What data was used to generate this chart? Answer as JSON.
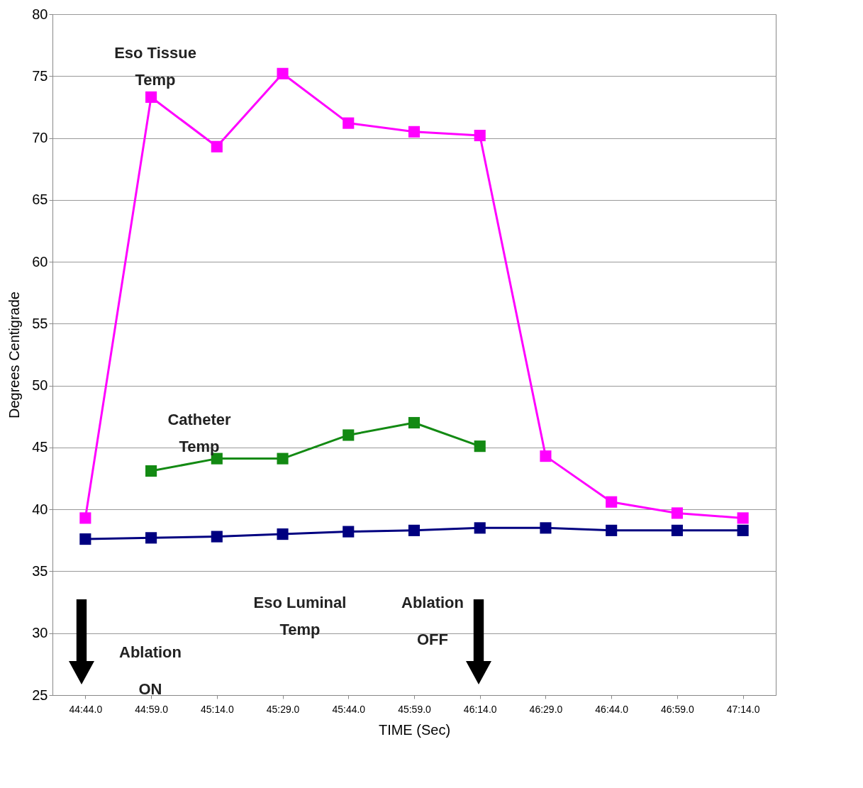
{
  "chart_data": {
    "type": "line",
    "xlabel": "TIME (Sec)",
    "ylabel": "Degrees Centigrade",
    "categories": [
      "44:44.0",
      "44:59.0",
      "45:14.0",
      "45:29.0",
      "45:44.0",
      "45:59.0",
      "46:14.0",
      "46:29.0",
      "46:44.0",
      "46:59.0",
      "47:14.0"
    ],
    "ylim": [
      25,
      80
    ],
    "yticks": [
      25,
      30,
      35,
      40,
      45,
      50,
      55,
      60,
      65,
      70,
      75,
      80
    ],
    "grid": "y",
    "marker": "square",
    "line_style": "solid",
    "series": [
      {
        "color": "#ff00ff",
        "values": [
          39.3,
          73.3,
          69.3,
          75.2,
          71.2,
          70.5,
          70.2,
          44.3,
          40.6,
          39.7,
          39.3
        ]
      },
      {
        "color": "#138a13",
        "values": [
          null,
          43.1,
          44.1,
          44.1,
          46.0,
          47.0,
          45.1,
          null,
          null,
          null,
          null
        ]
      },
      {
        "color": "#000080",
        "values": [
          37.6,
          37.7,
          37.8,
          38.0,
          38.2,
          38.3,
          38.5,
          38.5,
          38.3,
          38.3,
          38.3
        ]
      }
    ],
    "annotations": [
      "Eso Tissue Temp",
      "Catheter Temp",
      "Eso Luminal Temp",
      "Ablation ON",
      "Ablation OFF"
    ]
  }
}
